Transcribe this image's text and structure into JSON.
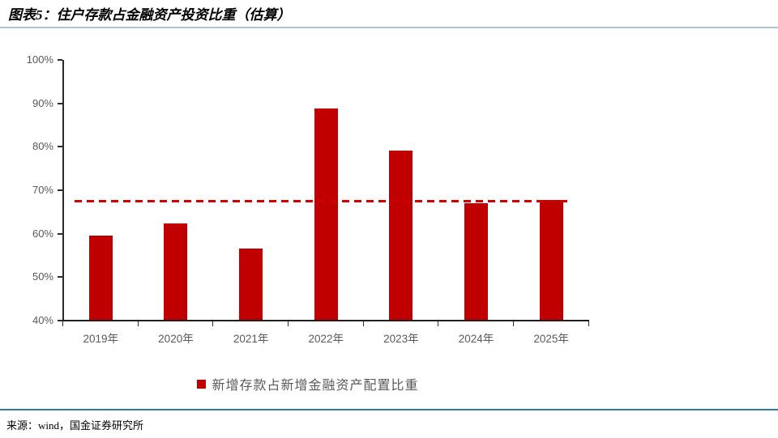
{
  "figure": {
    "title": "图表5：住户存款占金融资产投资比重（估算）",
    "source": "来源：wind，国金证券研究所"
  },
  "legend": {
    "marker": "square-icon",
    "marker_color": "#C00000",
    "label": "新增存款占新增金融资产配置比重"
  },
  "chart_data": {
    "type": "bar",
    "title": "图表5：住户存款占金融资产投资比重（估算）",
    "categories": [
      "2019年",
      "2020年",
      "2021年",
      "2022年",
      "2023年",
      "2024年",
      "2025年"
    ],
    "series": [
      {
        "name": "新增存款占新增金融资产配置比重",
        "color": "#C00000",
        "values": [
          59.6,
          62.3,
          56.5,
          88.9,
          79.1,
          67.0,
          67.7
        ]
      }
    ],
    "reference_line": {
      "value": 67.5,
      "style": "dashed",
      "color": "#D10000"
    },
    "ylim": [
      40,
      100
    ],
    "ytick_values": [
      100,
      90,
      80,
      70,
      60,
      50,
      40
    ],
    "ytick_labels": [
      "100%",
      "90%",
      "80%",
      "70%",
      "60%",
      "50%",
      "40%"
    ],
    "xlabel": "",
    "ylabel": "",
    "grid": false,
    "legend_position": "bottom"
  },
  "colors": {
    "bar": "#C00000",
    "dashed_line": "#D10000",
    "axis_line": "#2B2B2B",
    "tick_label_text": "#595959",
    "title_text": "#000000",
    "header_rule": "#AEC6D4",
    "footer_rule": "#2E7D9C",
    "background": "#FFFFFF"
  }
}
